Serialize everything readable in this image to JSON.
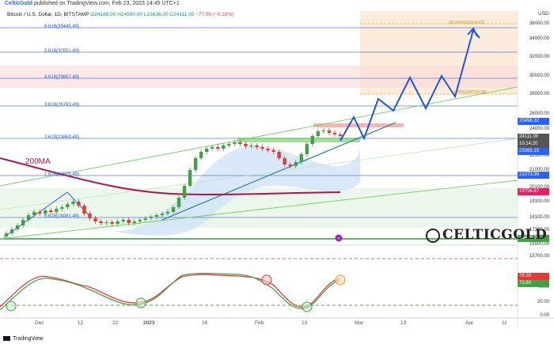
{
  "header": {
    "publisher": "CelticGold",
    "published_text": "published on TradingView.com, Feb 23, 2023 14:45 UTC+1"
  },
  "legend": {
    "symbol": "Bitcoin / U.S. Dollar, 1D, BITSTAMP",
    "open": "O24188.00",
    "high": "H24590.00",
    "low": "L23636.00",
    "close": "C24111.00",
    "change": "−77.00 (−0.32%)"
  },
  "currency_label": "USD",
  "ma_label": "200MA",
  "fib_levels": [
    {
      "label": "6.618(35445.49)",
      "value": 35445.49
    },
    {
      "label": "5.618(32551.49)",
      "value": 32551.49
    },
    {
      "label": "4.618(29657.49)",
      "value": 29657.49
    },
    {
      "label": "3.618(26763.49)",
      "value": 26763.49
    },
    {
      "label": "2.618(23869.49)",
      "value": 23869.49
    },
    {
      "label": "1.618(20975.49)",
      "value": 20975.49
    },
    {
      "label": "0.618(18081.49)",
      "value": 18081.49
    }
  ],
  "target_labels": [
    {
      "label": "38.20%(35924.02)",
      "value": 35924.02
    },
    {
      "label": "1.00%(28109.98)",
      "value": 28109.98
    }
  ],
  "price_axis": [
    "36000.00",
    "34000.00",
    "32000.00",
    "30000.00",
    "28000.00",
    "26000.00",
    "24000.00",
    "22500.00",
    "21000.00",
    "20100.00",
    "19100.00",
    "18100.00",
    "17300.00",
    "16500.00",
    "15700.00"
  ],
  "price_tags": [
    {
      "text": "25456.32",
      "color": "#2962ff"
    },
    {
      "text": "24111.00",
      "color": "#555555"
    },
    {
      "text": "10:14:20",
      "color": "#555555"
    },
    {
      "text": "23265.15",
      "color": "#2962ff"
    },
    {
      "text": "21073.98",
      "color": "#2962ff"
    },
    {
      "text": "19756.87",
      "color": "#e91e63"
    },
    {
      "text": "15479.00",
      "color": "#43a047"
    }
  ],
  "stoch_axis": [
    "78.28",
    "73.80",
    "40.00",
    "20.00",
    "0.00"
  ],
  "stoch_tags": [
    {
      "text": "78.28",
      "color": "#e53935"
    },
    {
      "text": "73.80",
      "color": "#43a047"
    }
  ],
  "time_axis": [
    "Dec",
    "12",
    "22",
    "2023",
    "16",
    "Feb",
    "13",
    "Mar",
    "13",
    "Apr",
    "11"
  ],
  "logo_text": "CELTICGOLD",
  "footer": {
    "brand": "TradingView"
  },
  "colors": {
    "candle_up": "#43a047",
    "candle_down": "#e53935",
    "ma200": "#b0124e",
    "fib_line": "#5b7bd5",
    "projection": "#1e53e5",
    "trend_green": "#6cd15a"
  }
}
